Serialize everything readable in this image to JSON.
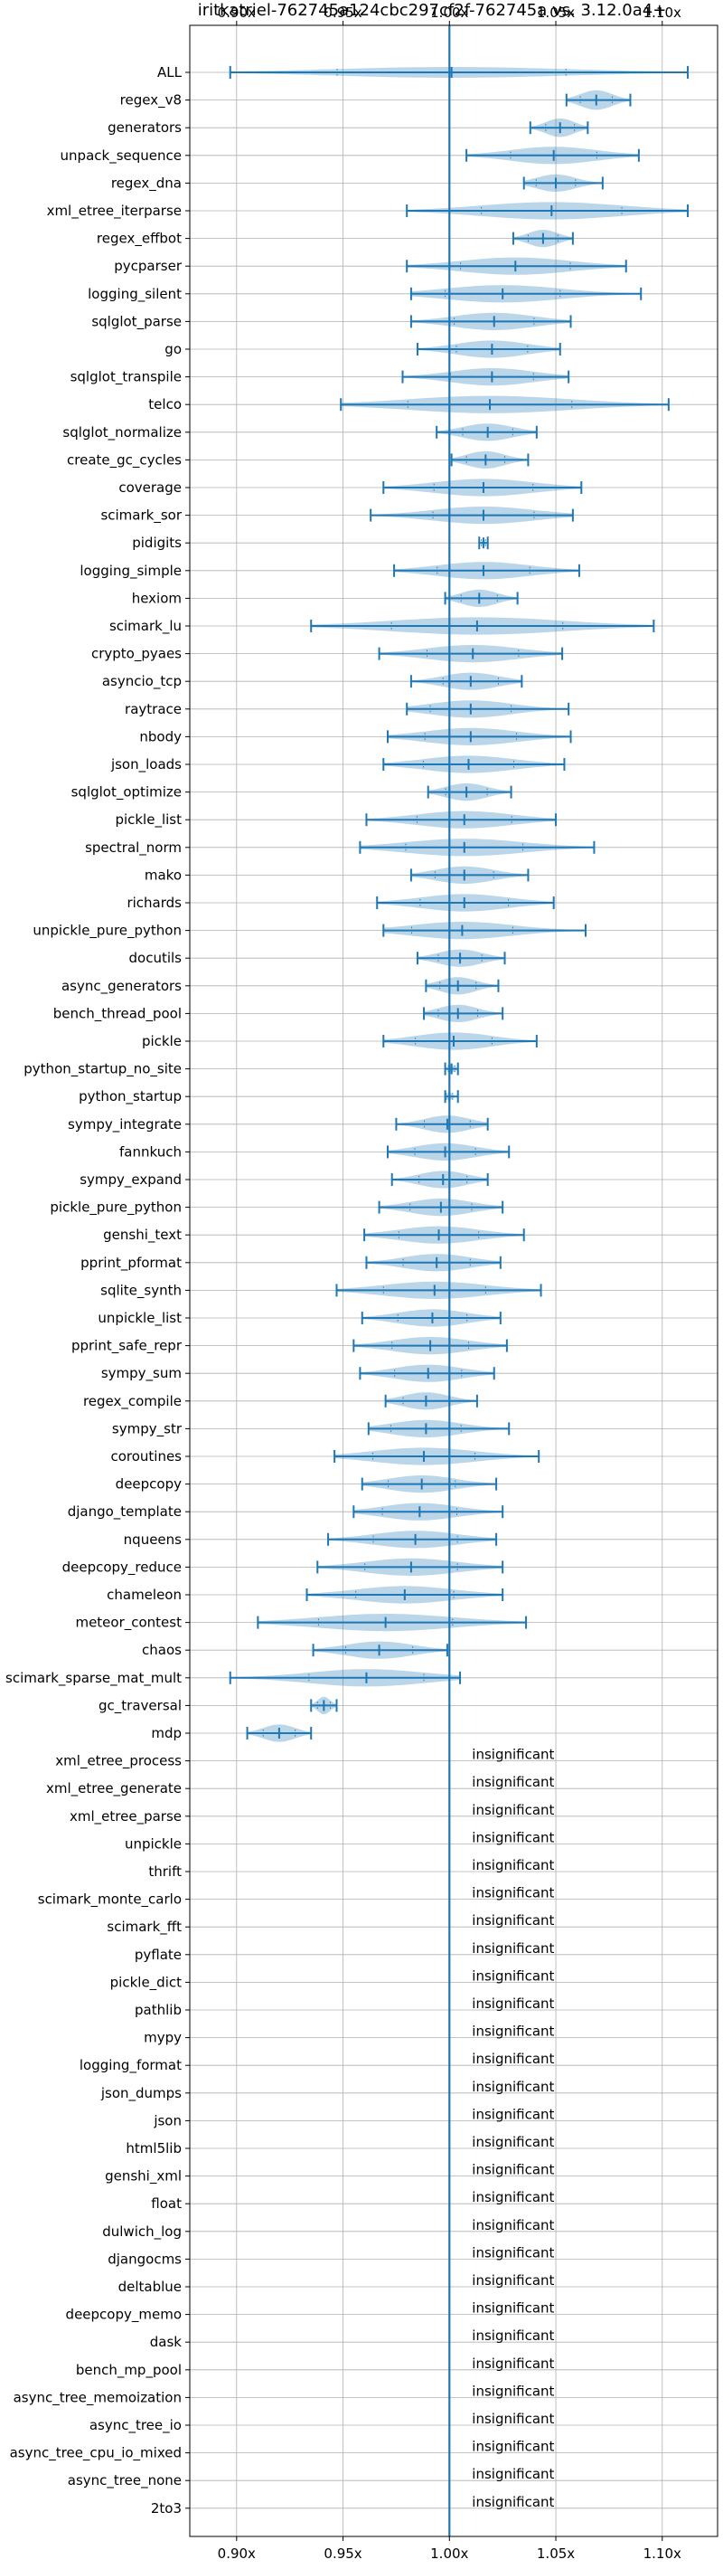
{
  "chart_data": {
    "type": "violin",
    "title": "iritkatriel-762745a124cbc297cf2f-762745a vs. 3.12.0a4+",
    "xlabel": "",
    "ylabel": "",
    "x_tick_labels": [
      "0.90x",
      "0.95x",
      "1.00x",
      "1.05x",
      "1.10x"
    ],
    "x_ticks": [
      0.9,
      0.95,
      1.0,
      1.05,
      1.1
    ],
    "xlim": [
      0.878,
      1.126
    ],
    "reference_line": 1.0,
    "grid": true,
    "colors": {
      "violin": "#1f77b4",
      "violin_alpha": 0.3,
      "line": "#1f77b4",
      "grid": "#b0b0b0"
    },
    "insignificant_label": "insignificant",
    "significant": [
      {
        "name": "ALL",
        "min": 0.897,
        "max": 1.112,
        "mean": 1.001,
        "w": 0.5
      },
      {
        "name": "regex_v8",
        "min": 1.055,
        "max": 1.085,
        "mean": 1.069,
        "w": 0.9
      },
      {
        "name": "generators",
        "min": 1.038,
        "max": 1.065,
        "mean": 1.052,
        "w": 0.85
      },
      {
        "name": "unpack_sequence",
        "min": 1.008,
        "max": 1.089,
        "mean": 1.049,
        "w": 0.8
      },
      {
        "name": "regex_dna",
        "min": 1.035,
        "max": 1.072,
        "mean": 1.05,
        "w": 0.8
      },
      {
        "name": "xml_etree_iterparse",
        "min": 0.98,
        "max": 1.112,
        "mean": 1.048,
        "w": 0.8
      },
      {
        "name": "regex_effbot",
        "min": 1.03,
        "max": 1.058,
        "mean": 1.044,
        "w": 0.8
      },
      {
        "name": "pycparser",
        "min": 0.98,
        "max": 1.083,
        "mean": 1.031,
        "w": 0.8
      },
      {
        "name": "logging_silent",
        "min": 0.982,
        "max": 1.09,
        "mean": 1.025,
        "w": 0.8
      },
      {
        "name": "sqlglot_parse",
        "min": 0.982,
        "max": 1.057,
        "mean": 1.021,
        "w": 0.8
      },
      {
        "name": "go",
        "min": 0.985,
        "max": 1.052,
        "mean": 1.02,
        "w": 0.8
      },
      {
        "name": "sqlglot_transpile",
        "min": 0.978,
        "max": 1.056,
        "mean": 1.02,
        "w": 0.8
      },
      {
        "name": "telco",
        "min": 0.949,
        "max": 1.103,
        "mean": 1.019,
        "w": 0.8
      },
      {
        "name": "sqlglot_normalize",
        "min": 0.994,
        "max": 1.041,
        "mean": 1.018,
        "w": 0.8
      },
      {
        "name": "create_gc_cycles",
        "min": 1.001,
        "max": 1.037,
        "mean": 1.017,
        "w": 0.8
      },
      {
        "name": "coverage",
        "min": 0.969,
        "max": 1.062,
        "mean": 1.016,
        "w": 0.8
      },
      {
        "name": "scimark_sor",
        "min": 0.963,
        "max": 1.058,
        "mean": 1.016,
        "w": 0.8
      },
      {
        "name": "pidigits",
        "min": 1.014,
        "max": 1.018,
        "mean": 1.016,
        "w": 0.25
      },
      {
        "name": "logging_simple",
        "min": 0.974,
        "max": 1.061,
        "mean": 1.016,
        "w": 0.8
      },
      {
        "name": "hexiom",
        "min": 0.998,
        "max": 1.032,
        "mean": 1.014,
        "w": 0.8
      },
      {
        "name": "scimark_lu",
        "min": 0.935,
        "max": 1.096,
        "mean": 1.013,
        "w": 0.8
      },
      {
        "name": "crypto_pyaes",
        "min": 0.967,
        "max": 1.053,
        "mean": 1.011,
        "w": 0.8
      },
      {
        "name": "asyncio_tcp",
        "min": 0.982,
        "max": 1.034,
        "mean": 1.01,
        "w": 0.8
      },
      {
        "name": "raytrace",
        "min": 0.98,
        "max": 1.056,
        "mean": 1.01,
        "w": 0.8
      },
      {
        "name": "nbody",
        "min": 0.971,
        "max": 1.057,
        "mean": 1.01,
        "w": 0.8
      },
      {
        "name": "json_loads",
        "min": 0.969,
        "max": 1.054,
        "mean": 1.009,
        "w": 0.8
      },
      {
        "name": "sqlglot_optimize",
        "min": 0.99,
        "max": 1.029,
        "mean": 1.008,
        "w": 0.8
      },
      {
        "name": "pickle_list",
        "min": 0.961,
        "max": 1.05,
        "mean": 1.007,
        "w": 0.8
      },
      {
        "name": "spectral_norm",
        "min": 0.958,
        "max": 1.068,
        "mean": 1.007,
        "w": 0.8
      },
      {
        "name": "mako",
        "min": 0.982,
        "max": 1.037,
        "mean": 1.007,
        "w": 0.8
      },
      {
        "name": "richards",
        "min": 0.966,
        "max": 1.049,
        "mean": 1.007,
        "w": 0.8
      },
      {
        "name": "unpickle_pure_python",
        "min": 0.969,
        "max": 1.064,
        "mean": 1.006,
        "w": 0.8
      },
      {
        "name": "docutils",
        "min": 0.985,
        "max": 1.026,
        "mean": 1.005,
        "w": 0.8
      },
      {
        "name": "async_generators",
        "min": 0.989,
        "max": 1.023,
        "mean": 1.004,
        "w": 0.8
      },
      {
        "name": "bench_thread_pool",
        "min": 0.988,
        "max": 1.025,
        "mean": 1.004,
        "w": 0.8
      },
      {
        "name": "pickle",
        "min": 0.969,
        "max": 1.041,
        "mean": 1.002,
        "w": 0.8
      },
      {
        "name": "python_startup_no_site",
        "min": 0.998,
        "max": 1.004,
        "mean": 1.001,
        "w": 0.35
      },
      {
        "name": "python_startup",
        "min": 0.998,
        "max": 1.004,
        "mean": 1.0,
        "w": 0.35
      },
      {
        "name": "sympy_integrate",
        "min": 0.975,
        "max": 1.018,
        "mean": 0.999,
        "w": 0.8
      },
      {
        "name": "fannkuch",
        "min": 0.971,
        "max": 1.028,
        "mean": 0.998,
        "w": 0.8
      },
      {
        "name": "sympy_expand",
        "min": 0.973,
        "max": 1.018,
        "mean": 0.997,
        "w": 0.8
      },
      {
        "name": "pickle_pure_python",
        "min": 0.967,
        "max": 1.025,
        "mean": 0.996,
        "w": 0.8
      },
      {
        "name": "genshi_text",
        "min": 0.96,
        "max": 1.035,
        "mean": 0.995,
        "w": 0.8
      },
      {
        "name": "pprint_pformat",
        "min": 0.961,
        "max": 1.024,
        "mean": 0.994,
        "w": 0.8
      },
      {
        "name": "sqlite_synth",
        "min": 0.947,
        "max": 1.043,
        "mean": 0.993,
        "w": 0.8
      },
      {
        "name": "unpickle_list",
        "min": 0.959,
        "max": 1.024,
        "mean": 0.992,
        "w": 0.8
      },
      {
        "name": "pprint_safe_repr",
        "min": 0.955,
        "max": 1.027,
        "mean": 0.991,
        "w": 0.8
      },
      {
        "name": "sympy_sum",
        "min": 0.958,
        "max": 1.021,
        "mean": 0.99,
        "w": 0.8
      },
      {
        "name": "regex_compile",
        "min": 0.97,
        "max": 1.013,
        "mean": 0.989,
        "w": 0.8
      },
      {
        "name": "sympy_str",
        "min": 0.962,
        "max": 1.028,
        "mean": 0.989,
        "w": 0.8
      },
      {
        "name": "coroutines",
        "min": 0.946,
        "max": 1.042,
        "mean": 0.988,
        "w": 0.8
      },
      {
        "name": "deepcopy",
        "min": 0.959,
        "max": 1.022,
        "mean": 0.987,
        "w": 0.8
      },
      {
        "name": "django_template",
        "min": 0.955,
        "max": 1.025,
        "mean": 0.986,
        "w": 0.8
      },
      {
        "name": "nqueens",
        "min": 0.943,
        "max": 1.022,
        "mean": 0.984,
        "w": 0.8
      },
      {
        "name": "deepcopy_reduce",
        "min": 0.938,
        "max": 1.025,
        "mean": 0.982,
        "w": 0.8
      },
      {
        "name": "chameleon",
        "min": 0.933,
        "max": 1.025,
        "mean": 0.979,
        "w": 0.8
      },
      {
        "name": "meteor_contest",
        "min": 0.91,
        "max": 1.036,
        "mean": 0.97,
        "w": 0.8
      },
      {
        "name": "chaos",
        "min": 0.936,
        "max": 0.999,
        "mean": 0.967,
        "w": 0.8
      },
      {
        "name": "scimark_sparse_mat_mult",
        "min": 0.897,
        "max": 1.005,
        "mean": 0.961,
        "w": 0.8
      },
      {
        "name": "gc_traversal",
        "min": 0.935,
        "max": 0.947,
        "mean": 0.941,
        "w": 0.8
      },
      {
        "name": "mdp",
        "min": 0.905,
        "max": 0.935,
        "mean": 0.92,
        "w": 0.8
      }
    ],
    "insignificant": [
      "xml_etree_process",
      "xml_etree_generate",
      "xml_etree_parse",
      "unpickle",
      "thrift",
      "scimark_monte_carlo",
      "scimark_fft",
      "pyflate",
      "pickle_dict",
      "pathlib",
      "mypy",
      "logging_format",
      "json_dumps",
      "json",
      "html5lib",
      "genshi_xml",
      "float",
      "dulwich_log",
      "djangocms",
      "deltablue",
      "deepcopy_memo",
      "dask",
      "bench_mp_pool",
      "async_tree_memoization",
      "async_tree_io",
      "async_tree_cpu_io_mixed",
      "async_tree_none",
      "2to3"
    ]
  }
}
